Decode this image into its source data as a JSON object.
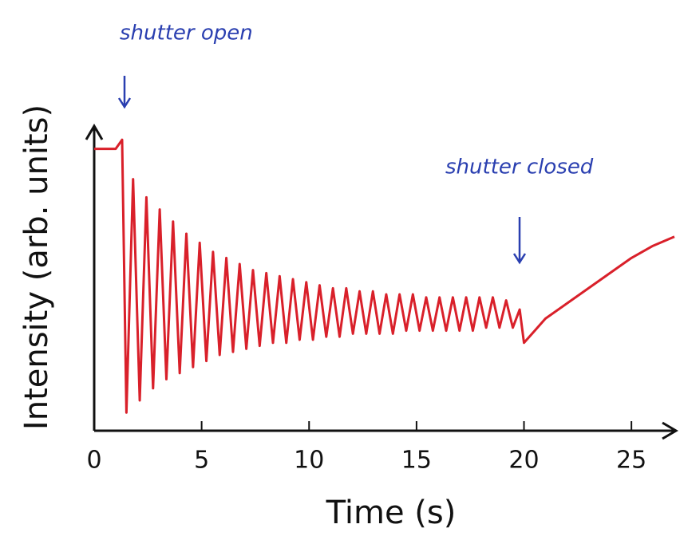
{
  "chart_data": {
    "type": "line",
    "annotations": [
      "shutter open",
      "shutter closed"
    ],
    "x_label": "Time (s)",
    "y_label": "Intensity (arb. units)",
    "xlim": [
      0,
      27
    ],
    "xticks": [
      0,
      5,
      10,
      15,
      20,
      25
    ],
    "ylim": [
      0,
      1
    ],
    "color": "#d9202a",
    "x": [
      0,
      1,
      1.3,
      1.5,
      1.81,
      2.12,
      2.43,
      2.74,
      3.05,
      3.36,
      3.67,
      3.98,
      4.29,
      4.6,
      4.91,
      5.22,
      5.53,
      5.84,
      6.15,
      6.46,
      6.77,
      7.08,
      7.39,
      7.7,
      8.01,
      8.32,
      8.63,
      8.94,
      9.25,
      9.56,
      9.87,
      10.18,
      10.49,
      10.8,
      11.11,
      11.42,
      11.73,
      12.04,
      12.35,
      12.66,
      12.97,
      13.28,
      13.59,
      13.9,
      14.21,
      14.52,
      14.83,
      15.14,
      15.45,
      15.76,
      16.07,
      16.38,
      16.69,
      17.0,
      17.31,
      17.62,
      17.93,
      18.24,
      18.55,
      18.86,
      19.17,
      19.48,
      19.8,
      20,
      20.5,
      21,
      22,
      23,
      24,
      25,
      26,
      27
    ],
    "values": [
      0.93,
      0.93,
      0.96,
      0.06,
      0.83,
      0.1,
      0.77,
      0.14,
      0.73,
      0.17,
      0.69,
      0.19,
      0.65,
      0.21,
      0.62,
      0.23,
      0.59,
      0.25,
      0.57,
      0.26,
      0.55,
      0.27,
      0.53,
      0.28,
      0.52,
      0.29,
      0.51,
      0.29,
      0.5,
      0.3,
      0.49,
      0.3,
      0.48,
      0.31,
      0.47,
      0.31,
      0.47,
      0.32,
      0.46,
      0.32,
      0.46,
      0.32,
      0.45,
      0.32,
      0.45,
      0.33,
      0.45,
      0.33,
      0.44,
      0.33,
      0.44,
      0.33,
      0.44,
      0.33,
      0.44,
      0.33,
      0.44,
      0.34,
      0.44,
      0.34,
      0.43,
      0.34,
      0.4,
      0.29,
      0.33,
      0.37,
      0.42,
      0.47,
      0.52,
      0.57,
      0.61,
      0.64
    ]
  }
}
